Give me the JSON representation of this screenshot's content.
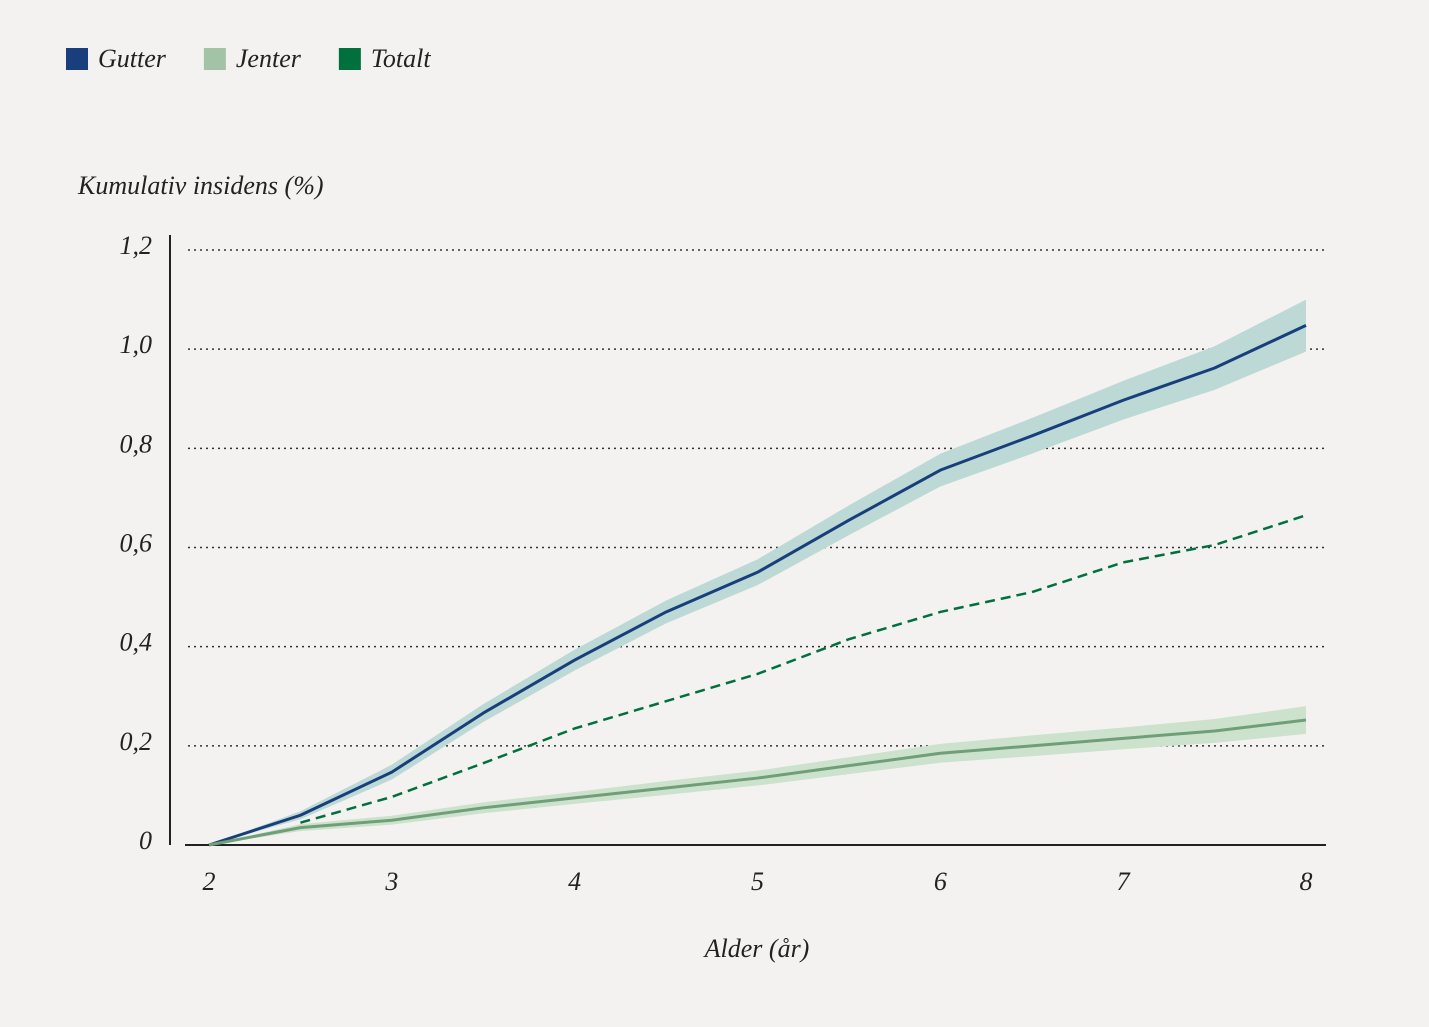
{
  "chart_data": {
    "type": "line",
    "ylabel": "Kumulativ insidens (%)",
    "xlabel": "Alder (år)",
    "x": [
      2,
      2.5,
      3,
      3.5,
      4,
      4.5,
      5,
      5.5,
      6,
      6.5,
      7,
      7.5,
      8
    ],
    "xlim": [
      2,
      8
    ],
    "xticks": [
      2,
      3,
      4,
      5,
      6,
      7,
      8
    ],
    "ylim": [
      0,
      1.2
    ],
    "yticks": [
      0,
      {
        "value": 0.2,
        "label": "0,2"
      },
      {
        "value": 0.4,
        "label": "0,4"
      },
      {
        "value": 0.6,
        "label": "0,6"
      },
      {
        "value": 0.8,
        "label": "0,8"
      },
      {
        "value": 1.0,
        "label": "1,0"
      },
      {
        "value": 1.2,
        "label": "1,2"
      }
    ],
    "grid": true,
    "legend": "top-left",
    "series": [
      {
        "name": "Gutter",
        "color": "#183f7c",
        "band_color": "#bcd9d6",
        "dashed": false,
        "values": [
          0,
          0.06,
          0.147,
          0.266,
          0.373,
          0.47,
          0.55,
          0.655,
          0.756,
          0.825,
          0.897,
          0.962,
          1.048
        ],
        "lower": [
          0,
          0.052,
          0.132,
          0.248,
          0.352,
          0.447,
          0.524,
          0.625,
          0.723,
          0.789,
          0.858,
          0.918,
          0.995
        ],
        "upper": [
          0,
          0.068,
          0.162,
          0.284,
          0.394,
          0.493,
          0.576,
          0.685,
          0.789,
          0.861,
          0.936,
          1.006,
          1.1
        ]
      },
      {
        "name": "Jenter",
        "color": "#6f9f78",
        "legend_color": "#a3c3a6",
        "band_color": "#cde2cc",
        "dashed": false,
        "values": [
          0,
          0.035,
          0.05,
          0.075,
          0.095,
          0.115,
          0.135,
          0.16,
          0.185,
          0.2,
          0.215,
          0.23,
          0.252
        ],
        "lower": [
          0,
          0.028,
          0.041,
          0.064,
          0.083,
          0.101,
          0.12,
          0.143,
          0.166,
          0.179,
          0.193,
          0.206,
          0.224
        ],
        "upper": [
          0,
          0.042,
          0.059,
          0.086,
          0.107,
          0.129,
          0.15,
          0.177,
          0.204,
          0.221,
          0.237,
          0.254,
          0.28
        ]
      },
      {
        "name": "Totalt",
        "color": "#00703c",
        "dashed": true,
        "values": [
          null,
          0.045,
          0.097,
          0.165,
          0.235,
          0.29,
          0.345,
          0.415,
          0.47,
          0.51,
          0.57,
          0.605,
          0.665
        ]
      }
    ]
  }
}
